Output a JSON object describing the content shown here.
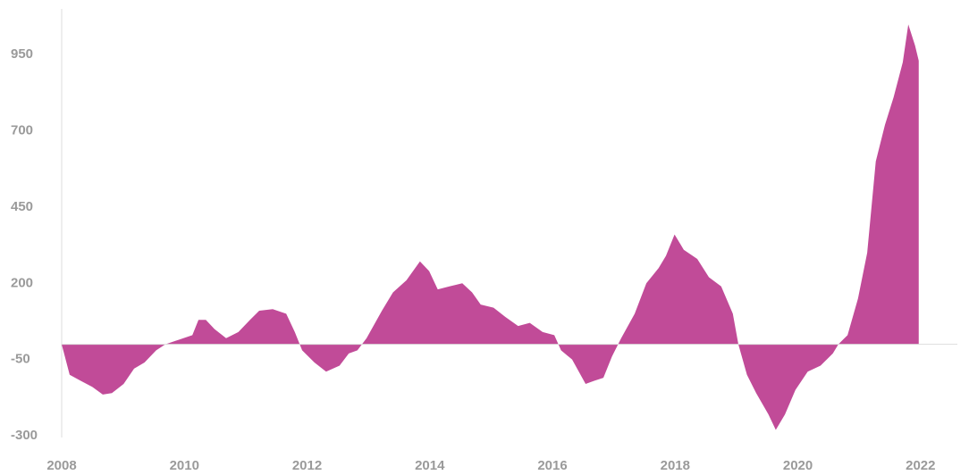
{
  "chart_data": {
    "type": "area",
    "color": "#c14b98",
    "x": [
      2008.0,
      2008.13,
      2008.31,
      2008.5,
      2008.67,
      2008.82,
      2009.01,
      2009.18,
      2009.35,
      2009.54,
      2009.69,
      2009.91,
      2010.13,
      2010.23,
      2010.35,
      2010.49,
      2010.68,
      2010.88,
      2011.07,
      2011.22,
      2011.44,
      2011.66,
      2011.8,
      2011.92,
      2012.12,
      2012.31,
      2012.53,
      2012.68,
      2012.82,
      2012.97,
      2013.22,
      2013.4,
      2013.62,
      2013.84,
      2013.99,
      2014.13,
      2014.32,
      2014.53,
      2014.69,
      2014.83,
      2015.04,
      2015.23,
      2015.44,
      2015.63,
      2015.84,
      2016.03,
      2016.14,
      2016.32,
      2016.54,
      2016.68,
      2016.83,
      2016.97,
      2017.12,
      2017.34,
      2017.53,
      2017.73,
      2017.85,
      2017.99,
      2018.14,
      2018.36,
      2018.55,
      2018.75,
      2018.94,
      2019.03,
      2019.17,
      2019.32,
      2019.52,
      2019.64,
      2019.79,
      2019.96,
      2020.16,
      2020.37,
      2020.57,
      2020.66,
      2020.81,
      2020.98,
      2021.13,
      2021.27,
      2021.42,
      2021.56,
      2021.71,
      2021.8,
      2021.91,
      2021.97
    ],
    "values": [
      0,
      -100,
      -120,
      -140,
      -165,
      -160,
      -130,
      -80,
      -60,
      -20,
      0,
      15,
      30,
      80,
      80,
      50,
      20,
      40,
      80,
      110,
      115,
      100,
      40,
      -20,
      -60,
      -90,
      -70,
      -30,
      -20,
      20,
      110,
      170,
      210,
      272,
      240,
      180,
      190,
      200,
      170,
      130,
      120,
      90,
      60,
      70,
      40,
      30,
      -20,
      -50,
      -130,
      -120,
      -110,
      -40,
      20,
      100,
      200,
      250,
      290,
      360,
      310,
      280,
      220,
      190,
      100,
      0,
      -100,
      -160,
      -230,
      -281,
      -230,
      -150,
      -90,
      -70,
      -30,
      0,
      30,
      150,
      300,
      600,
      720,
      810,
      925,
      1049,
      980,
      930
    ],
    "xlim": [
      2008,
      2022.6
    ],
    "xticks": [
      2008,
      2010,
      2012,
      2014,
      2016,
      2018,
      2020,
      2022
    ],
    "ylim": [
      -300,
      1100
    ],
    "yticks": [
      950,
      700,
      450,
      200,
      -50,
      -300
    ],
    "grid": false
  }
}
